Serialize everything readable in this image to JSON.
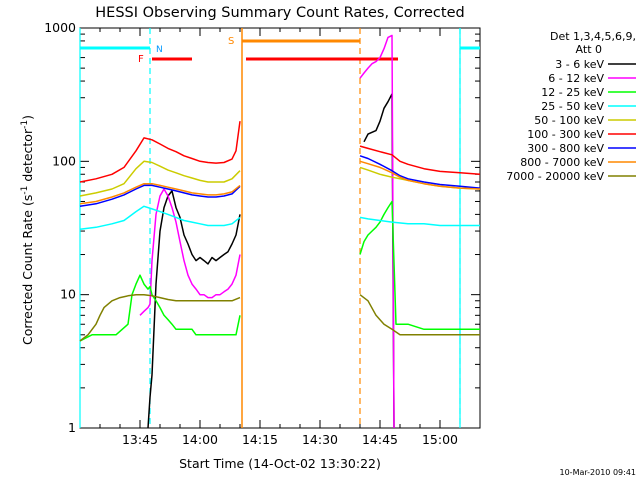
{
  "chart_data": {
    "type": "line",
    "title": "HESSI Observing Summary Count Rates, Corrected",
    "xlabel": "Start Time (14-Oct-02 13:30:22)",
    "ylabel_main": "Corrected Count Rate (s",
    "ylabel_sup1": "-1",
    "ylabel_mid": " detector",
    "ylabel_sup2": "-1",
    "ylabel_end": ")",
    "y_scale": "log",
    "ylim": [
      1,
      1000
    ],
    "xlim_minutes": [
      0,
      100
    ],
    "x_tick_labels": [
      "13:45",
      "14:00",
      "14:15",
      "14:30",
      "14:45",
      "15:00"
    ],
    "x_tick_minutes": [
      15,
      30,
      45,
      60,
      75,
      90
    ],
    "y_tick_labels": [
      "1",
      "10",
      "100",
      "1000"
    ],
    "y_tick_values": [
      1,
      10,
      100,
      1000
    ],
    "legend_title_line1": "Det 1,3,4,5,6,9,",
    "legend_title_line2": "Att 0",
    "legend_placement": "right",
    "timestamp": "10-Mar-2010 09:41",
    "flags": {
      "night_label": "N",
      "flare_label": "F",
      "saa_label": "S",
      "night_color": "#00ffff",
      "flare_color": "#ff0000",
      "saa_color": "#ff8800",
      "night_spans": [
        [
          0,
          17.5
        ],
        [
          95,
          100
        ]
      ],
      "flare_spans": [
        [
          18,
          28
        ],
        [
          41.5,
          79.5
        ]
      ],
      "saa_spans": [
        [
          40.5,
          70
        ]
      ],
      "night_boundaries": [
        17.5,
        95
      ],
      "saa_boundaries": [
        40.5,
        70
      ],
      "night_boundary_solid": [
        0,
        95
      ]
    },
    "series": [
      {
        "name": "3 - 6 keV",
        "color": "#000000",
        "points": [
          [
            17,
            1
          ],
          [
            17.5,
            1.7
          ],
          [
            18,
            2.5
          ],
          [
            19,
            12
          ],
          [
            20,
            30
          ],
          [
            21,
            45
          ],
          [
            22,
            55
          ],
          [
            23,
            60
          ],
          [
            24,
            45
          ],
          [
            25,
            38
          ],
          [
            26,
            28
          ],
          [
            27,
            24
          ],
          [
            28,
            20
          ],
          [
            29,
            18
          ],
          [
            30,
            19
          ],
          [
            31,
            18
          ],
          [
            32,
            17
          ],
          [
            33,
            19
          ],
          [
            34,
            18
          ],
          [
            35,
            19
          ],
          [
            36,
            20
          ],
          [
            37,
            21
          ],
          [
            38,
            24
          ],
          [
            39,
            28
          ],
          [
            40,
            40
          ]
        ],
        "points2": [
          [
            71,
            140
          ],
          [
            72,
            160
          ],
          [
            73,
            165
          ],
          [
            74,
            170
          ],
          [
            75,
            200
          ],
          [
            76,
            250
          ],
          [
            77,
            280
          ],
          [
            78,
            320
          ],
          [
            78.5,
            1
          ]
        ]
      },
      {
        "name": "6 - 12 keV",
        "color": "#ff00ff",
        "points": [
          [
            15,
            7
          ],
          [
            16,
            7.5
          ],
          [
            17,
            8
          ],
          [
            17.5,
            8.5
          ],
          [
            18,
            18
          ],
          [
            19,
            40
          ],
          [
            20,
            55
          ],
          [
            21,
            62
          ],
          [
            22,
            55
          ],
          [
            23,
            45
          ],
          [
            24,
            35
          ],
          [
            25,
            25
          ],
          [
            26,
            18
          ],
          [
            27,
            14
          ],
          [
            28,
            12
          ],
          [
            29,
            11
          ],
          [
            30,
            10
          ],
          [
            31,
            10
          ],
          [
            32,
            9.5
          ],
          [
            33,
            9.5
          ],
          [
            34,
            10
          ],
          [
            35,
            10
          ],
          [
            36,
            10.5
          ],
          [
            37,
            11
          ],
          [
            38,
            12
          ],
          [
            39,
            14
          ],
          [
            40,
            20
          ]
        ],
        "points2": [
          [
            70,
            420
          ],
          [
            71,
            460
          ],
          [
            72,
            500
          ],
          [
            73,
            540
          ],
          [
            74,
            560
          ],
          [
            75,
            600
          ],
          [
            76,
            700
          ],
          [
            77,
            850
          ],
          [
            78,
            880
          ],
          [
            78.5,
            1
          ]
        ]
      },
      {
        "name": "12 - 25 keV",
        "color": "#00ff00",
        "points": [
          [
            0,
            4.5
          ],
          [
            3,
            5
          ],
          [
            6,
            5
          ],
          [
            9,
            5
          ],
          [
            12,
            6
          ],
          [
            13,
            10
          ],
          [
            14,
            12
          ],
          [
            15,
            14
          ],
          [
            16,
            12
          ],
          [
            17,
            11
          ],
          [
            17.5,
            11.5
          ],
          [
            18,
            10
          ],
          [
            19,
            9
          ],
          [
            20,
            8
          ],
          [
            21,
            7
          ],
          [
            22,
            6.5
          ],
          [
            23,
            6
          ],
          [
            24,
            5.5
          ],
          [
            25,
            5.5
          ],
          [
            26,
            5.5
          ],
          [
            27,
            5.5
          ],
          [
            28,
            5.5
          ],
          [
            29,
            5
          ],
          [
            30,
            5
          ],
          [
            31,
            5
          ],
          [
            32,
            5
          ],
          [
            33,
            5
          ],
          [
            34,
            5
          ],
          [
            35,
            5
          ],
          [
            36,
            5
          ],
          [
            37,
            5
          ],
          [
            38,
            5
          ],
          [
            39,
            5
          ],
          [
            40,
            7
          ]
        ],
        "points2": [
          [
            70,
            20
          ],
          [
            71,
            25
          ],
          [
            72,
            28
          ],
          [
            73,
            30
          ],
          [
            74,
            32
          ],
          [
            75,
            35
          ],
          [
            76,
            40
          ],
          [
            77,
            45
          ],
          [
            78,
            50
          ],
          [
            79,
            6
          ],
          [
            82,
            6
          ],
          [
            86,
            5.5
          ],
          [
            90,
            5.5
          ],
          [
            95,
            5.5
          ],
          [
            100,
            5.5
          ]
        ]
      },
      {
        "name": "25 - 50 keV",
        "color": "#00ffff",
        "points": [
          [
            0,
            31
          ],
          [
            4,
            32
          ],
          [
            8,
            34
          ],
          [
            11,
            36
          ],
          [
            14,
            42
          ],
          [
            16,
            46
          ],
          [
            18,
            44
          ],
          [
            20,
            42
          ],
          [
            22,
            40
          ],
          [
            24,
            38
          ],
          [
            26,
            36
          ],
          [
            28,
            35
          ],
          [
            30,
            34
          ],
          [
            32,
            33
          ],
          [
            34,
            33
          ],
          [
            36,
            33
          ],
          [
            38,
            34
          ],
          [
            40,
            38
          ]
        ],
        "points2": [
          [
            70,
            38
          ],
          [
            72,
            37
          ],
          [
            75,
            36
          ],
          [
            78,
            35
          ],
          [
            82,
            34
          ],
          [
            86,
            34
          ],
          [
            90,
            33
          ],
          [
            95,
            33
          ],
          [
            100,
            33
          ]
        ]
      },
      {
        "name": "50 - 100 keV",
        "color": "#cccc00",
        "points": [
          [
            0,
            55
          ],
          [
            4,
            58
          ],
          [
            8,
            62
          ],
          [
            11,
            68
          ],
          [
            14,
            88
          ],
          [
            16,
            100
          ],
          [
            18,
            98
          ],
          [
            20,
            92
          ],
          [
            22,
            86
          ],
          [
            24,
            82
          ],
          [
            26,
            78
          ],
          [
            28,
            75
          ],
          [
            30,
            72
          ],
          [
            32,
            70
          ],
          [
            34,
            70
          ],
          [
            36,
            70
          ],
          [
            38,
            74
          ],
          [
            40,
            85
          ]
        ],
        "points2": [
          [
            70,
            90
          ],
          [
            72,
            86
          ],
          [
            75,
            80
          ],
          [
            78,
            76
          ],
          [
            82,
            72
          ],
          [
            86,
            68
          ],
          [
            90,
            65
          ],
          [
            95,
            63
          ],
          [
            100,
            62
          ]
        ]
      },
      {
        "name": "100 - 300 keV",
        "color": "#ff0000",
        "points": [
          [
            0,
            70
          ],
          [
            4,
            74
          ],
          [
            8,
            80
          ],
          [
            11,
            90
          ],
          [
            14,
            120
          ],
          [
            16,
            150
          ],
          [
            18,
            145
          ],
          [
            20,
            135
          ],
          [
            22,
            125
          ],
          [
            24,
            118
          ],
          [
            26,
            110
          ],
          [
            28,
            105
          ],
          [
            30,
            100
          ],
          [
            32,
            98
          ],
          [
            34,
            97
          ],
          [
            36,
            98
          ],
          [
            38,
            104
          ],
          [
            39,
            120
          ],
          [
            40,
            200
          ]
        ],
        "points2": [
          [
            70,
            130
          ],
          [
            72,
            125
          ],
          [
            75,
            118
          ],
          [
            78,
            112
          ],
          [
            80,
            100
          ],
          [
            82,
            95
          ],
          [
            86,
            88
          ],
          [
            90,
            84
          ],
          [
            95,
            82
          ],
          [
            100,
            80
          ]
        ]
      },
      {
        "name": "300 - 800 keV",
        "color": "#0000ff",
        "points": [
          [
            0,
            46
          ],
          [
            4,
            48
          ],
          [
            8,
            52
          ],
          [
            11,
            56
          ],
          [
            14,
            62
          ],
          [
            16,
            66
          ],
          [
            18,
            66
          ],
          [
            20,
            64
          ],
          [
            22,
            62
          ],
          [
            24,
            60
          ],
          [
            26,
            58
          ],
          [
            28,
            56
          ],
          [
            30,
            55
          ],
          [
            32,
            54
          ],
          [
            34,
            54
          ],
          [
            36,
            55
          ],
          [
            38,
            57
          ],
          [
            40,
            65
          ]
        ],
        "points2": [
          [
            70,
            110
          ],
          [
            72,
            105
          ],
          [
            75,
            95
          ],
          [
            78,
            85
          ],
          [
            80,
            78
          ],
          [
            82,
            74
          ],
          [
            86,
            70
          ],
          [
            90,
            67
          ],
          [
            95,
            65
          ],
          [
            100,
            63
          ]
        ]
      },
      {
        "name": "800 - 7000 keV",
        "color": "#ff8800",
        "points": [
          [
            0,
            48
          ],
          [
            4,
            50
          ],
          [
            8,
            54
          ],
          [
            11,
            58
          ],
          [
            14,
            64
          ],
          [
            16,
            68
          ],
          [
            18,
            68
          ],
          [
            20,
            66
          ],
          [
            22,
            64
          ],
          [
            24,
            62
          ],
          [
            26,
            60
          ],
          [
            28,
            58
          ],
          [
            30,
            57
          ],
          [
            32,
            56
          ],
          [
            34,
            56
          ],
          [
            36,
            57
          ],
          [
            38,
            59
          ],
          [
            40,
            66
          ]
        ],
        "points2": [
          [
            70,
            100
          ],
          [
            72,
            96
          ],
          [
            75,
            90
          ],
          [
            78,
            82
          ],
          [
            80,
            76
          ],
          [
            82,
            72
          ],
          [
            86,
            68
          ],
          [
            90,
            65
          ],
          [
            95,
            63
          ],
          [
            100,
            62
          ]
        ]
      },
      {
        "name": "7000 - 20000 keV",
        "color": "#808000",
        "points": [
          [
            0,
            4.5
          ],
          [
            2,
            5
          ],
          [
            4,
            6
          ],
          [
            5,
            7
          ],
          [
            6,
            8
          ],
          [
            8,
            9
          ],
          [
            10,
            9.5
          ],
          [
            12,
            9.8
          ],
          [
            14,
            10
          ],
          [
            16,
            10
          ],
          [
            18,
            9.8
          ],
          [
            20,
            9.5
          ],
          [
            22,
            9.2
          ],
          [
            24,
            9
          ],
          [
            26,
            9
          ],
          [
            28,
            9
          ],
          [
            30,
            9
          ],
          [
            32,
            9
          ],
          [
            34,
            9
          ],
          [
            36,
            9
          ],
          [
            38,
            9
          ],
          [
            40,
            9.5
          ]
        ],
        "points2": [
          [
            70,
            10
          ],
          [
            72,
            9
          ],
          [
            74,
            7
          ],
          [
            76,
            6
          ],
          [
            78,
            5.5
          ],
          [
            80,
            5
          ],
          [
            84,
            5
          ],
          [
            88,
            5
          ],
          [
            92,
            5
          ],
          [
            96,
            5
          ],
          [
            100,
            5
          ]
        ]
      }
    ]
  }
}
